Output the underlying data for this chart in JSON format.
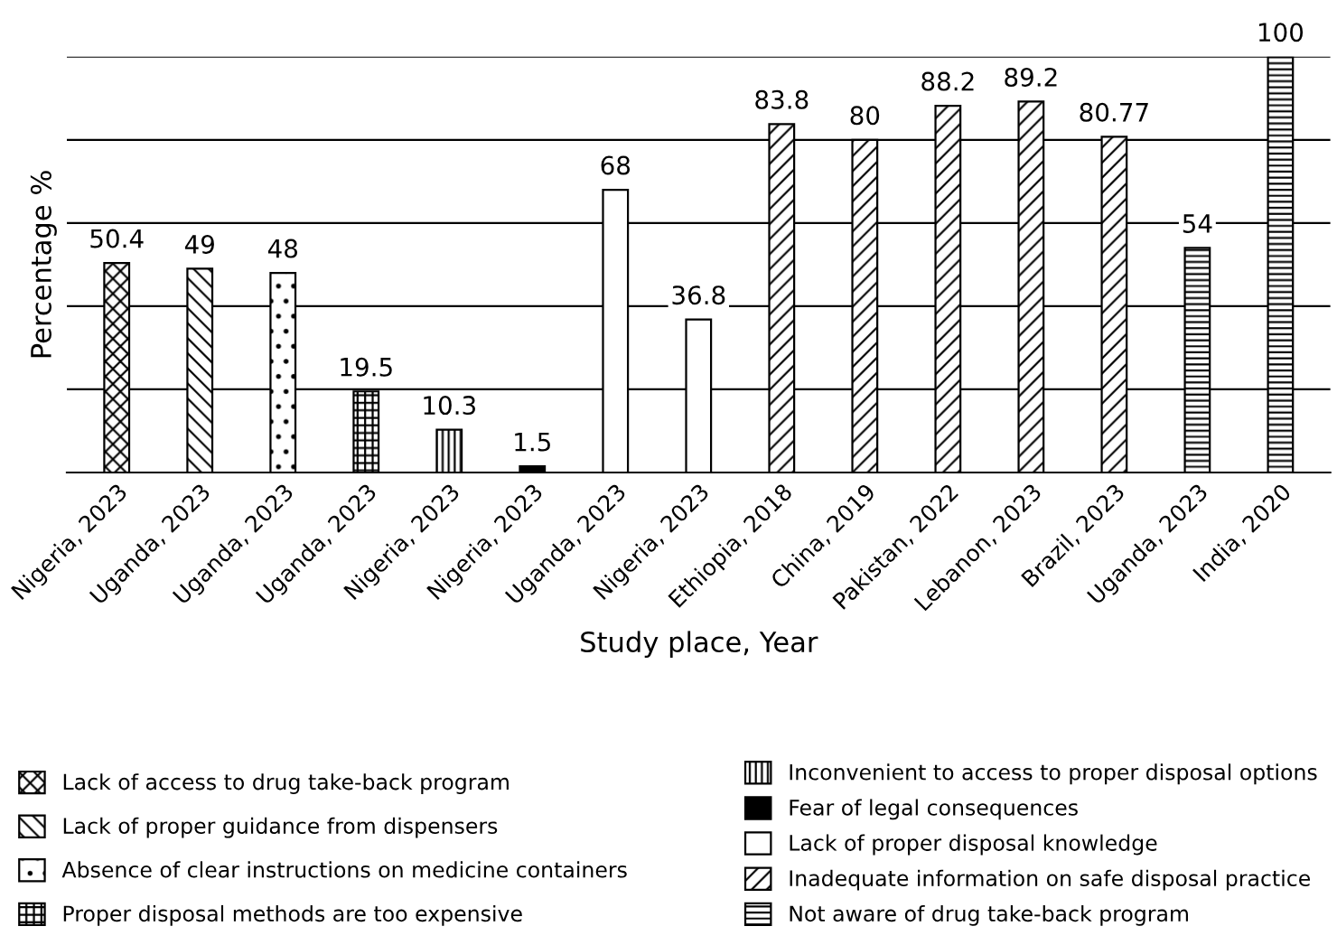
{
  "chart_data": {
    "type": "bar",
    "xlabel": "Study place, Year",
    "ylabel": "Percentage %",
    "categories": [
      "Nigeria, 2023",
      "Uganda, 2023",
      "Uganda, 2023",
      "Uganda, 2023",
      "Nigeria, 2023",
      "Nigeria, 2023",
      "Uganda, 2023",
      "Nigeria, 2023",
      "Ethiopia, 2018",
      "China, 2019",
      "Pakistan, 2022",
      "Lebanon, 2023",
      "Brazil, 2023",
      "Uganda, 2023",
      "India, 2020"
    ],
    "series": [
      {
        "name": "Lack of access to drug take-back program",
        "color": "#000000",
        "values": [
          50.4,
          null,
          null,
          null,
          null,
          null,
          null,
          null,
          null,
          null,
          null,
          null,
          null,
          null,
          null
        ]
      },
      {
        "name": "Lack of proper guidance from dispensers",
        "color": "#000000",
        "values": [
          null,
          49,
          null,
          null,
          null,
          null,
          null,
          null,
          null,
          null,
          null,
          null,
          null,
          null,
          null
        ]
      },
      {
        "name": "Absence of clear instructions on medicine containers",
        "color": "#000000",
        "values": [
          null,
          null,
          48,
          null,
          null,
          null,
          null,
          null,
          null,
          null,
          null,
          null,
          null,
          null,
          null
        ]
      },
      {
        "name": "Proper disposal methods are too expensive",
        "color": "#000000",
        "values": [
          null,
          null,
          null,
          19.5,
          null,
          null,
          null,
          null,
          null,
          null,
          null,
          null,
          null,
          null,
          null
        ]
      },
      {
        "name": "Inconvenient to access to proper disposal options",
        "color": "#000000",
        "values": [
          null,
          null,
          null,
          null,
          10.3,
          null,
          null,
          null,
          null,
          null,
          null,
          null,
          null,
          null,
          null
        ]
      },
      {
        "name": "Fear of legal consequences",
        "color": "#000000",
        "values": [
          null,
          null,
          null,
          null,
          null,
          1.5,
          null,
          null,
          null,
          null,
          null,
          null,
          null,
          null,
          null
        ]
      },
      {
        "name": "Lack of proper disposal knowledge",
        "color": "#000000",
        "values": [
          null,
          null,
          null,
          null,
          null,
          null,
          68,
          36.8,
          null,
          null,
          null,
          null,
          null,
          null,
          null
        ]
      },
      {
        "name": "Inadequate information on safe disposal practice",
        "color": "#000000",
        "values": [
          null,
          null,
          null,
          null,
          null,
          null,
          null,
          null,
          83.8,
          80,
          88.2,
          89.2,
          80.77,
          null,
          null
        ]
      },
      {
        "name": "Not aware of drug take-back program",
        "color": "#000000",
        "values": [
          null,
          null,
          null,
          null,
          null,
          null,
          null,
          null,
          null,
          null,
          null,
          null,
          null,
          54,
          100
        ]
      }
    ],
    "ylim": [
      0,
      100
    ],
    "yticks": [
      0,
      20,
      40,
      60,
      80,
      100
    ],
    "grid": "y",
    "tick_labels": "x",
    "data_labels": true,
    "legend": "bottom"
  }
}
